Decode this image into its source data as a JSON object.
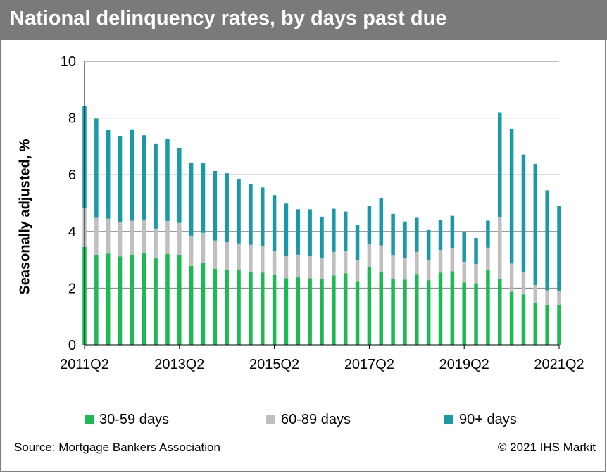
{
  "header": {
    "title": "National delinquency rates, by days past due"
  },
  "footer": {
    "source": "Source:  Mortgage Bankers Association",
    "copyright": "© 2021 IHS Markit"
  },
  "colors": {
    "title_bar": "#7a7a7a",
    "s30_59": "#1db954",
    "s60_89": "#bfbfbf",
    "s90plus": "#1a9aa6"
  },
  "chart_data": {
    "type": "bar",
    "stacked": true,
    "ylabel": "Seasonally adjusted, %",
    "ylim": [
      0,
      10
    ],
    "yticks": [
      "0",
      "2",
      "4",
      "6",
      "8",
      "10"
    ],
    "xtick_labels": [
      "2011Q2",
      "2013Q2",
      "2015Q2",
      "2017Q2",
      "2019Q2",
      "2021Q2"
    ],
    "grid": true,
    "legend_position": "bottom",
    "categories": [
      "2011Q2",
      "2011Q3",
      "2011Q4",
      "2012Q1",
      "2012Q2",
      "2012Q3",
      "2012Q4",
      "2013Q1",
      "2013Q2",
      "2013Q3",
      "2013Q4",
      "2014Q1",
      "2014Q2",
      "2014Q3",
      "2014Q4",
      "2015Q1",
      "2015Q2",
      "2015Q3",
      "2015Q4",
      "2016Q1",
      "2016Q2",
      "2016Q3",
      "2016Q4",
      "2017Q1",
      "2017Q2",
      "2017Q3",
      "2017Q4",
      "2018Q1",
      "2018Q2",
      "2018Q3",
      "2018Q4",
      "2019Q1",
      "2019Q2",
      "2019Q3",
      "2019Q4",
      "2020Q1",
      "2020Q2",
      "2020Q3",
      "2020Q4",
      "2021Q1",
      "2021Q2"
    ],
    "series": [
      {
        "name": "30-59 days",
        "values": [
          3.45,
          3.18,
          3.22,
          3.12,
          3.18,
          3.25,
          3.05,
          3.2,
          3.18,
          2.78,
          2.88,
          2.68,
          2.65,
          2.65,
          2.58,
          2.55,
          2.48,
          2.35,
          2.38,
          2.35,
          2.32,
          2.45,
          2.52,
          2.25,
          2.75,
          2.58,
          2.32,
          2.3,
          2.5,
          2.28,
          2.55,
          2.6,
          2.2,
          2.17,
          2.65,
          2.33,
          1.87,
          1.78,
          1.48,
          1.4,
          1.4
        ]
      },
      {
        "name": "60-89 days",
        "values": [
          1.38,
          1.3,
          1.23,
          1.2,
          1.2,
          1.17,
          1.05,
          1.17,
          1.12,
          1.07,
          1.07,
          1.0,
          0.97,
          0.93,
          0.95,
          0.93,
          0.82,
          0.78,
          0.8,
          0.8,
          0.73,
          0.83,
          0.8,
          0.73,
          0.82,
          0.93,
          0.85,
          0.77,
          0.78,
          0.72,
          0.8,
          0.82,
          0.73,
          0.68,
          0.78,
          2.17,
          1.0,
          0.78,
          0.63,
          0.52,
          0.5
        ]
      },
      {
        "name": "90+ days",
        "values": [
          3.6,
          3.5,
          3.12,
          3.05,
          3.22,
          2.97,
          3.0,
          2.88,
          2.65,
          2.58,
          2.45,
          2.45,
          2.43,
          2.27,
          2.13,
          2.07,
          1.98,
          1.85,
          1.6,
          1.63,
          1.47,
          1.52,
          1.38,
          1.25,
          1.33,
          1.66,
          1.45,
          1.28,
          1.2,
          1.05,
          1.05,
          1.13,
          1.05,
          0.92,
          0.95,
          3.7,
          4.75,
          4.15,
          4.27,
          3.53,
          3.0
        ]
      }
    ]
  }
}
